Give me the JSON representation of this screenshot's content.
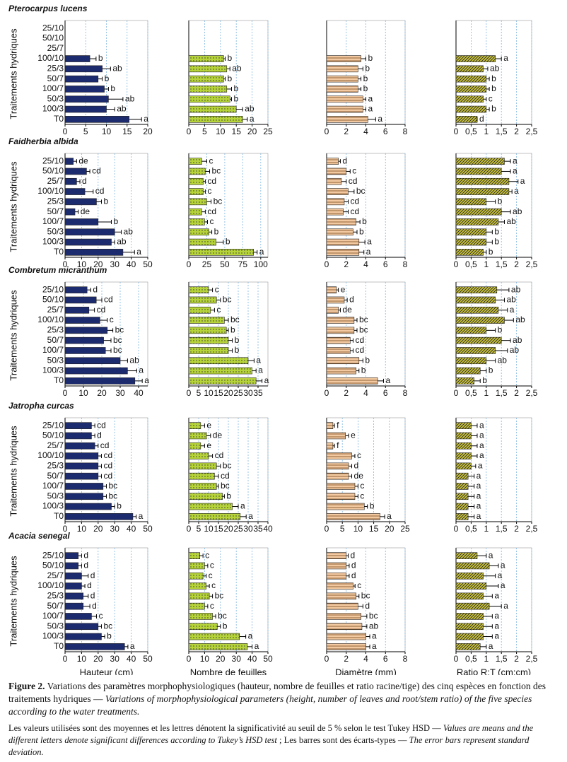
{
  "chart_data": [
    {
      "type": "bar",
      "title": "Pterocarpus lucens",
      "ylabel": "Traitements hydriques",
      "categories": [
        "25/10",
        "50/10",
        "25/7",
        "100/10",
        "25/3",
        "50/7",
        "100/7",
        "50/3",
        "100/3",
        "T0"
      ],
      "values": [
        null,
        null,
        null,
        6,
        9,
        8,
        9.5,
        10.5,
        10,
        15.5
      ],
      "errors": [
        null,
        null,
        null,
        1.5,
        2,
        1,
        1,
        3.5,
        2,
        3
      ],
      "letters": [
        null,
        null,
        null,
        "b",
        "ab",
        "b",
        "b",
        "ab",
        "ab",
        "a"
      ],
      "color": "#1c2a6e",
      "pattern": "solid",
      "xlim": [
        0,
        20
      ],
      "xticks": [
        0,
        5,
        10,
        15,
        20
      ],
      "grid": true
    },
    {
      "type": "bar",
      "values": [
        null,
        null,
        null,
        11,
        12,
        11,
        12,
        13,
        15,
        17
      ],
      "errors": [
        null,
        null,
        null,
        0.5,
        1,
        0.5,
        1.5,
        0.5,
        2,
        1.5
      ],
      "letters": [
        null,
        null,
        null,
        "b",
        "ab",
        "b",
        "b",
        "b",
        "ab",
        "a"
      ],
      "color": "#b6d43a",
      "pattern": "dots",
      "xlim": [
        0,
        25
      ],
      "xticks": [
        0,
        5,
        10,
        15,
        20,
        25
      ],
      "grid": true
    },
    {
      "type": "bar",
      "values": [
        null,
        null,
        null,
        3.5,
        3.2,
        3.2,
        3.2,
        3.7,
        3.7,
        4.2
      ],
      "errors": [
        null,
        null,
        null,
        0.5,
        0.5,
        0.3,
        0.3,
        0.3,
        0.3,
        0.8
      ],
      "letters": [
        null,
        null,
        null,
        "b",
        "b",
        "b",
        "b",
        "a",
        "a",
        "a"
      ],
      "color": "#f2c9a0",
      "pattern": "hlines",
      "xlim": [
        0,
        8
      ],
      "xticks": [
        0,
        2,
        4,
        6,
        8
      ],
      "grid": true
    },
    {
      "type": "bar",
      "values": [
        null,
        null,
        null,
        1.3,
        0.9,
        1.0,
        1.0,
        0.9,
        1.0,
        0.7
      ],
      "errors": [
        null,
        null,
        null,
        0.2,
        0.15,
        0.1,
        0.1,
        0.1,
        0.1,
        0
      ],
      "letters": [
        null,
        null,
        null,
        "a",
        "ab",
        "b",
        "b",
        "c",
        "b",
        "d"
      ],
      "color": "#c9c23e",
      "pattern": "diagonal",
      "xlim": [
        0,
        2.5
      ],
      "xticks": [
        0,
        {
          "value": 0.5,
          "label": "0,5"
        },
        1,
        {
          "value": 1.5,
          "label": "1,5"
        },
        2,
        {
          "value": 2.5,
          "label": "2,5"
        }
      ],
      "grid": true
    },
    {
      "type": "bar",
      "title": "Faidherbia albida",
      "ylabel": "Traitements hydriques",
      "categories": [
        "25/10",
        "50/10",
        "25/7",
        "100/10",
        "25/3",
        "50/7",
        "100/7",
        "50/3",
        "100/3",
        "T0"
      ],
      "values": [
        5,
        13,
        7,
        12,
        19,
        6,
        20,
        30,
        28,
        35
      ],
      "errors": [
        2,
        2,
        2,
        5,
        3,
        2,
        8,
        4,
        2,
        7
      ],
      "letters": [
        "de",
        "cd",
        "d",
        "cd",
        "b",
        "de",
        "b",
        "ab",
        "ab",
        "a"
      ],
      "color": "#1c2a6e",
      "pattern": "solid",
      "xlim": [
        0,
        50
      ],
      "xticks": [
        0,
        10,
        20,
        30,
        40,
        50
      ],
      "grid": true
    },
    {
      "type": "bar",
      "values": [
        18,
        23,
        20,
        20,
        25,
        18,
        22,
        28,
        38,
        90
      ],
      "errors": [
        7,
        6,
        3,
        3,
        6,
        5,
        4,
        4,
        10,
        5
      ],
      "letters": [
        "c",
        "bc",
        "cd",
        "c",
        "bc",
        "cd",
        "c",
        "b",
        "b",
        "a"
      ],
      "color": "#b6d43a",
      "pattern": "dots",
      "xlim": [
        0,
        110
      ],
      "xticks": [
        0,
        25,
        50,
        75,
        100
      ],
      "grid": true
    },
    {
      "type": "bar",
      "values": [
        1.2,
        2,
        1.5,
        2.2,
        1.8,
        1.7,
        3.0,
        2.7,
        3.3,
        3.3
      ],
      "errors": [
        0.2,
        0.4,
        0.5,
        0.6,
        0.4,
        0.5,
        0.4,
        0.4,
        0.6,
        0.5
      ],
      "letters": [
        "d",
        "c",
        "cd",
        "bc",
        "cd",
        "cd",
        "b",
        "b",
        "a",
        "a"
      ],
      "color": "#f2c9a0",
      "pattern": "hlines",
      "xlim": [
        0,
        8
      ],
      "xticks": [
        0,
        2,
        4,
        6,
        8
      ],
      "grid": true
    },
    {
      "type": "bar",
      "values": [
        1.6,
        1.5,
        1.75,
        1.75,
        1.0,
        1.5,
        1.4,
        1.0,
        1.0,
        0.9
      ],
      "errors": [
        0.2,
        0.3,
        0.3,
        0.1,
        0.3,
        0.3,
        0.2,
        0.2,
        0.2,
        0.1
      ],
      "letters": [
        "a",
        "a",
        "a",
        "a",
        "b",
        "ab",
        "ab",
        "b",
        "b",
        "b"
      ],
      "color": "#c9c23e",
      "pattern": "diagonal",
      "xlim": [
        0,
        2.5
      ],
      "xticks": [
        0,
        {
          "value": 0.5,
          "label": "0,5"
        },
        1,
        {
          "value": 1.5,
          "label": "1,5"
        },
        2,
        {
          "value": 2.5,
          "label": "2,5"
        }
      ],
      "grid": true
    },
    {
      "type": "bar",
      "title": "Combretum micranthum",
      "ylabel": "Traitements hydriques",
      "categories": [
        "25/10",
        "50/10",
        "25/7",
        "100/10",
        "25/3",
        "50/7",
        "100/7",
        "50/3",
        "100/3",
        "T0"
      ],
      "values": [
        12,
        17,
        13,
        19,
        23,
        21,
        22,
        30,
        34,
        38
      ],
      "errors": [
        2,
        3,
        3,
        4,
        3,
        4,
        3,
        4,
        5,
        4
      ],
      "letters": [
        "d",
        "cd",
        "cd",
        "c",
        "bc",
        "bc",
        "bc",
        "ab",
        "a",
        "a"
      ],
      "color": "#1c2a6e",
      "pattern": "solid",
      "xlim": [
        0,
        45
      ],
      "xticks": [
        0,
        10,
        20,
        30,
        40
      ],
      "grid": true
    },
    {
      "type": "bar",
      "values": [
        10,
        14,
        11,
        18,
        19,
        20,
        20,
        30,
        32,
        34
      ],
      "errors": [
        2,
        2,
        2,
        2,
        1,
        2,
        2,
        3,
        2,
        3
      ],
      "letters": [
        "c",
        "bc",
        "c",
        "bc",
        "b",
        "b",
        "b",
        "a",
        "a",
        "a"
      ],
      "color": "#b6d43a",
      "pattern": "dots",
      "xlim": [
        0,
        40
      ],
      "xticks": [
        0,
        5,
        10,
        15,
        20,
        25,
        30,
        35
      ],
      "grid": true
    },
    {
      "type": "bar",
      "values": [
        1.0,
        1.8,
        1.2,
        2.8,
        2.8,
        2.4,
        2.4,
        3.3,
        3.0,
        5.2
      ],
      "errors": [
        0.2,
        0.3,
        0.2,
        0.3,
        0.3,
        0.3,
        0.3,
        0.4,
        0.3,
        0.6
      ],
      "letters": [
        "e",
        "d",
        "de",
        "bc",
        "bc",
        "cd",
        "cd",
        "b",
        "b",
        "a"
      ],
      "color": "#f2c9a0",
      "pattern": "hlines",
      "xlim": [
        0,
        8
      ],
      "xticks": [
        0,
        2,
        4,
        6,
        8
      ],
      "grid": true
    },
    {
      "type": "bar",
      "values": [
        1.35,
        1.3,
        1.4,
        1.6,
        1.0,
        1.5,
        1.3,
        1.0,
        0.8,
        0.6
      ],
      "errors": [
        0.4,
        0.3,
        0.3,
        0.3,
        0.3,
        0.3,
        0.4,
        0.3,
        0.2,
        0.2
      ],
      "letters": [
        "ab",
        "ab",
        "a",
        "ab",
        "b",
        "ab",
        "ab",
        "ab",
        "b",
        "b"
      ],
      "color": "#c9c23e",
      "pattern": "diagonal",
      "xlim": [
        0,
        2.5
      ],
      "xticks": [
        0,
        {
          "value": 0.5,
          "label": "0,5"
        },
        1,
        {
          "value": 1.5,
          "label": "1,5"
        },
        2,
        {
          "value": 2.5,
          "label": "2,5"
        }
      ],
      "grid": true
    },
    {
      "type": "bar",
      "title": "Jatropha curcas",
      "ylabel": "Traitements hydriques",
      "categories": [
        "25/10",
        "50/10",
        "25/7",
        "100/10",
        "25/3",
        "50/7",
        "100/7",
        "50/3",
        "100/3",
        "T0"
      ],
      "values": [
        16,
        16,
        18,
        20,
        20,
        20,
        23,
        23,
        28,
        41
      ],
      "errors": [
        2,
        2,
        2,
        2,
        2,
        2,
        2,
        2,
        2,
        2
      ],
      "letters": [
        "cd",
        "d",
        "cd",
        "cd",
        "cd",
        "cd",
        "bc",
        "bc",
        "b",
        "a"
      ],
      "color": "#1c2a6e",
      "pattern": "solid",
      "xlim": [
        0,
        50
      ],
      "xticks": [
        0,
        10,
        20,
        30,
        40,
        50
      ],
      "grid": true
    },
    {
      "type": "bar",
      "values": [
        6,
        9,
        6,
        10,
        14,
        13,
        14,
        17,
        22,
        26
      ],
      "errors": [
        2,
        2,
        2,
        2,
        2,
        2,
        1,
        1,
        3,
        3
      ],
      "letters": [
        "e",
        "de",
        "e",
        "cd",
        "bc",
        "cd",
        "bc",
        "b",
        "a",
        "a"
      ],
      "color": "#b6d43a",
      "pattern": "dots",
      "xlim": [
        0,
        40
      ],
      "xticks": [
        0,
        5,
        10,
        15,
        20,
        25,
        30,
        35,
        40
      ],
      "grid": true
    },
    {
      "type": "bar",
      "values": [
        2,
        6,
        2,
        8,
        7,
        7,
        9,
        9,
        12,
        17
      ],
      "errors": [
        0.5,
        1,
        0.5,
        1,
        1,
        1,
        1,
        1,
        1,
        1.5
      ],
      "letters": [
        "f",
        "e",
        "f",
        "c",
        "d",
        "de",
        "c",
        "c",
        "b",
        "a"
      ],
      "color": "#f2c9a0",
      "pattern": "hlines",
      "xlim": [
        0,
        25
      ],
      "xticks": [
        0,
        5,
        10,
        15,
        20,
        25
      ],
      "grid": true
    },
    {
      "type": "bar",
      "values": [
        0.5,
        0.5,
        0.5,
        0.5,
        0.5,
        0.4,
        0.4,
        0.4,
        0.4,
        0.4
      ],
      "errors": [
        0.2,
        0.2,
        0.2,
        0.2,
        0.15,
        0.2,
        0.2,
        0.2,
        0.2,
        0.2
      ],
      "letters": [
        "a",
        "a",
        "a",
        "a",
        "a",
        "a",
        "a",
        "a",
        "a",
        "a"
      ],
      "color": "#c9c23e",
      "pattern": "diagonal",
      "xlim": [
        0,
        2.5
      ],
      "xticks": [
        0,
        {
          "value": 0.5,
          "label": "0,5"
        },
        1,
        {
          "value": 1.5,
          "label": "1,5"
        },
        2,
        {
          "value": 2.5,
          "label": "2,5"
        }
      ],
      "grid": true
    },
    {
      "type": "bar",
      "title": "Acacia senegal",
      "ylabel": "Traitements hydriques",
      "xlabel": "Hauteur (cm)",
      "categories": [
        "25/10",
        "50/10",
        "25/7",
        "100/10",
        "25/3",
        "50/7",
        "100/7",
        "50/3",
        "100/3",
        "T0"
      ],
      "values": [
        8,
        8,
        10,
        10,
        11,
        11,
        16,
        20,
        22,
        36
      ],
      "errors": [
        2,
        2,
        4,
        2,
        3,
        4,
        3,
        2,
        2,
        2
      ],
      "letters": [
        "d",
        "d",
        "d",
        "d",
        "d",
        "d",
        "c",
        "bc",
        "b",
        "a"
      ],
      "color": "#1c2a6e",
      "pattern": "solid",
      "xlim": [
        0,
        50
      ],
      "xticks": [
        0,
        10,
        20,
        30,
        40,
        50
      ],
      "grid": true
    },
    {
      "type": "bar",
      "xlabel": "Nombre de feuilles",
      "values": [
        7,
        10,
        9,
        11,
        13,
        10,
        15,
        18,
        32,
        37
      ],
      "errors": [
        2,
        2,
        2,
        2,
        2,
        2,
        2,
        2,
        4,
        3
      ],
      "letters": [
        "c",
        "c",
        "c",
        "c",
        "bc",
        "c",
        "bc",
        "b",
        "a",
        "a"
      ],
      "color": "#b6d43a",
      "pattern": "dots",
      "xlim": [
        0,
        50
      ],
      "xticks": [
        0,
        10,
        20,
        30,
        40,
        50
      ],
      "grid": true
    },
    {
      "type": "bar",
      "xlabel": "Diamètre (mm)",
      "values": [
        2.0,
        2.0,
        2.0,
        2.7,
        3.0,
        3.2,
        3.5,
        3.6,
        4.0,
        4.0
      ],
      "errors": [
        0.2,
        0.3,
        0.3,
        0.2,
        0.3,
        0.5,
        0.6,
        0.5,
        0.4,
        0.4
      ],
      "letters": [
        "d",
        "d",
        "d",
        "c",
        "bc",
        "d",
        "bc",
        "ab",
        "a",
        "a"
      ],
      "color": "#f2c9a0",
      "pattern": "hlines",
      "xlim": [
        0,
        8
      ],
      "xticks": [
        0,
        2,
        4,
        6,
        8
      ],
      "grid": true
    },
    {
      "type": "bar",
      "xlabel": "Ratio R:T (cm:cm)",
      "values": [
        0.7,
        1.1,
        0.9,
        1.0,
        0.9,
        1.1,
        0.9,
        0.9,
        0.9,
        0.8
      ],
      "errors": [
        0.3,
        0.3,
        0.4,
        0.4,
        0.3,
        0.4,
        0.3,
        0.3,
        0.3,
        0.2
      ],
      "letters": [
        "a",
        "a",
        "a",
        "a",
        "a",
        "a",
        "a",
        "a",
        "a",
        "a"
      ],
      "color": "#c9c23e",
      "pattern": "diagonal",
      "xlim": [
        0,
        2.5
      ],
      "xticks": [
        0,
        {
          "value": 0.5,
          "label": "0,5"
        },
        1,
        {
          "value": 1.5,
          "label": "1,5"
        },
        2,
        {
          "value": 2.5,
          "label": "2,5"
        }
      ],
      "grid": true
    }
  ],
  "caption": {
    "figure_label": "Figure 2.",
    "text_fr": " Variations des paramètres morphophysiologiques (hauteur, nombre de feuilles et ratio racine/tige) des cinq espèces en fonction des traitements hydriques — ",
    "text_en": "Variations of morphophysiological parameters (height, number of leaves and root/stem ratio) of the five species according to the water treatments.",
    "note_fr_1": "Les valeurs utilisées sont des moyennes et les lettres dénotent la significativité au seuil de 5 % selon le test Tukey HSD — ",
    "note_en_1": "Values are means and the different letters denote significant differences according to Tukey’s HSD test",
    "note_fr_2": " ; Les barres sont des écarts-types — ",
    "note_en_2": "The error bars represent standard deviation."
  }
}
